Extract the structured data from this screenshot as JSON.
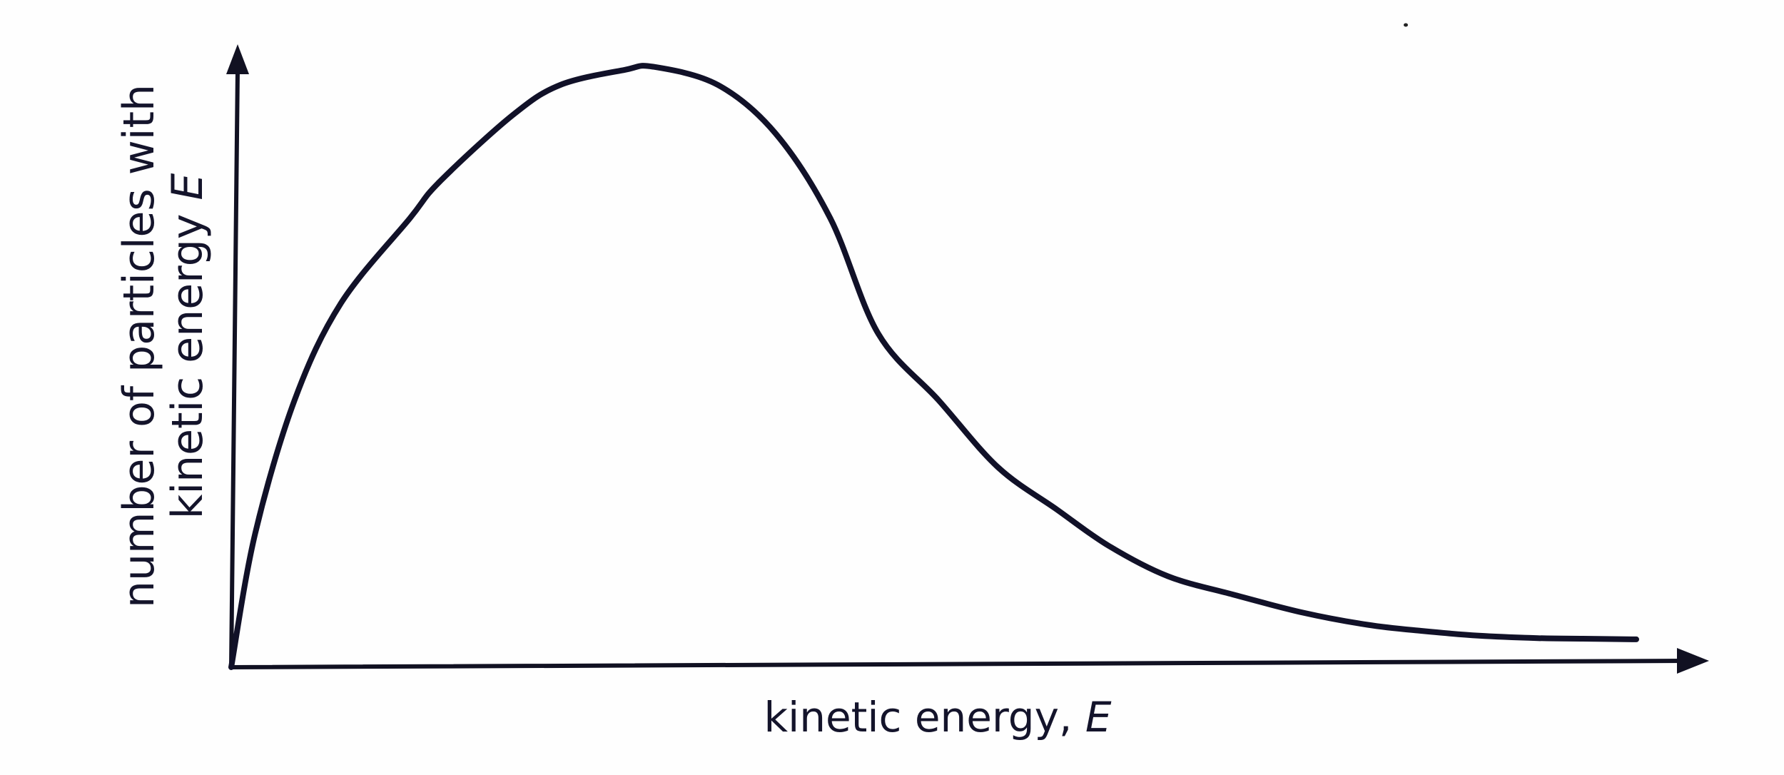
{
  "figure": {
    "background": "#ffffff",
    "ink_color": "#14142b"
  },
  "axes": {
    "x_label_text": "kinetic energy, ",
    "x_label_var": "E",
    "y_label_line1": "number of particles with",
    "y_label_line2_text": "kinetic energy ",
    "y_label_line2_var": "E"
  },
  "chart_data": {
    "type": "line",
    "title": "",
    "xlabel": "kinetic energy, E",
    "ylabel": "number of particles with kinetic energy E",
    "description": "Maxwell-Boltzmann style energy distribution: rises steeply from origin to a single peak at low energy, then decays with a long right tail approaching (but not reaching) zero.",
    "grid": false,
    "legend": null,
    "x_ticks": [],
    "y_ticks": [],
    "xlim": [
      0,
      1
    ],
    "ylim": [
      0,
      1
    ],
    "series": [
      {
        "name": "distribution",
        "x": [
          0.0,
          0.017,
          0.045,
          0.078,
          0.127,
          0.148,
          0.2,
          0.234,
          0.28,
          0.3,
          0.346,
          0.387,
          0.426,
          0.46,
          0.503,
          0.545,
          0.587,
          0.624,
          0.666,
          0.712,
          0.762,
          0.808,
          0.846,
          0.887,
          0.929,
          0.961,
          0.999
        ],
        "y": [
          0.0,
          0.22,
          0.44,
          0.6,
          0.74,
          0.8,
          0.91,
          0.96,
          0.985,
          0.99,
          0.96,
          0.88,
          0.74,
          0.55,
          0.44,
          0.33,
          0.26,
          0.2,
          0.15,
          0.12,
          0.09,
          0.07,
          0.06,
          0.052,
          0.048,
          0.047,
          0.046
        ]
      }
    ],
    "annotations": [],
    "peak": {
      "x": 0.3,
      "y": 1.0
    }
  }
}
